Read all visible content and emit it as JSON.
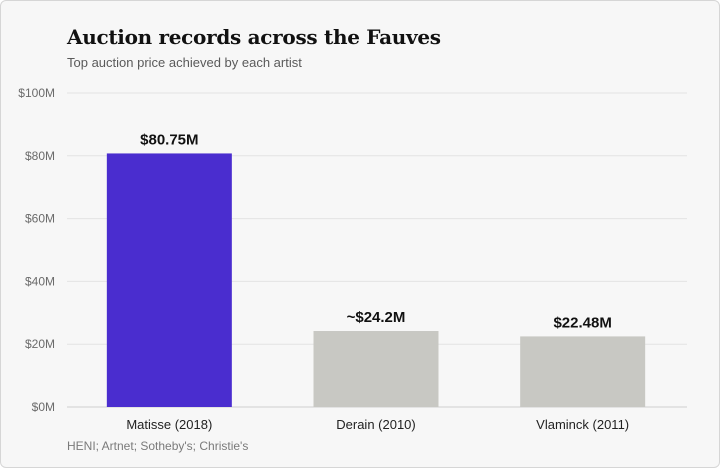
{
  "title": "Auction records across the Fauves",
  "subtitle": "Top auction price achieved by each artist",
  "source": "HENI; Artnet; Sotheby's; Christie's",
  "colors": {
    "highlight": "#4a2dcf",
    "muted": "#c8c8c3",
    "grid": "#e3e3e3",
    "axis": "#cfcfcf"
  },
  "chart_data": {
    "type": "bar",
    "title": "Auction records across the Fauves",
    "subtitle": "Top auction price achieved by each artist",
    "categories": [
      "Matisse (2018)",
      "Derain (2010)",
      "Vlaminck (2011)"
    ],
    "values": [
      80.75,
      24.2,
      22.48
    ],
    "value_labels": [
      "$80.75M",
      "~$24.2M",
      "$22.48M"
    ],
    "highlight_index": 0,
    "xlabel": "",
    "ylabel": "",
    "ylim": [
      0,
      100
    ],
    "yticks": [
      0,
      20,
      40,
      60,
      80,
      100
    ],
    "ytick_labels": [
      "$0M",
      "$20M",
      "$40M",
      "$60M",
      "$80M",
      "$100M"
    ],
    "grid": true,
    "legend": "none"
  }
}
